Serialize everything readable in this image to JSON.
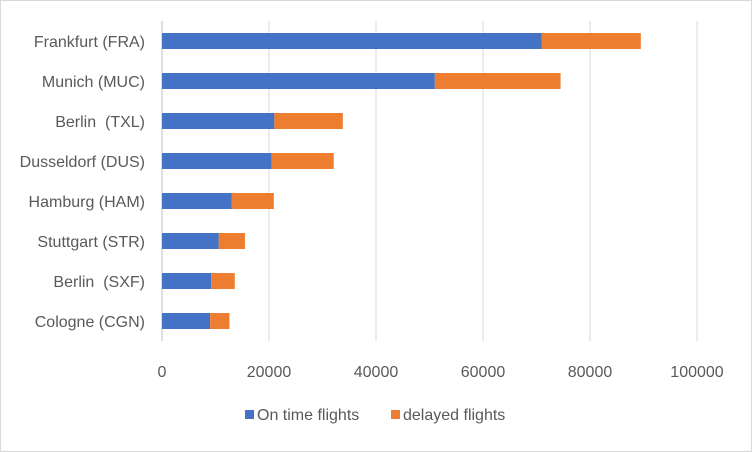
{
  "chart_data": {
    "type": "bar",
    "orientation": "horizontal",
    "stacked": true,
    "title": "",
    "xlabel": "",
    "ylabel": "",
    "categories": [
      "Cologne (CGN)",
      "Berlin  (SXF)",
      "Stuttgart (STR)",
      "Hamburg (HAM)",
      "Dusseldorf (DUS)",
      "Berlin  (TXL)",
      "Munich (MUC)",
      "Frankfurt (FRA)"
    ],
    "series": [
      {
        "name": "On time flights",
        "color": "#4472c4",
        "values": [
          9000,
          9200,
          10600,
          13000,
          20500,
          21000,
          51000,
          71000
        ]
      },
      {
        "name": "delayed flights",
        "color": "#ed7d31",
        "values": [
          3600,
          4400,
          4900,
          7900,
          11600,
          12800,
          23500,
          18500
        ]
      }
    ],
    "xlim": [
      0,
      100000
    ],
    "xticks": [
      0,
      20000,
      40000,
      60000,
      80000,
      100000
    ],
    "grid": true,
    "legend": "bottom"
  }
}
